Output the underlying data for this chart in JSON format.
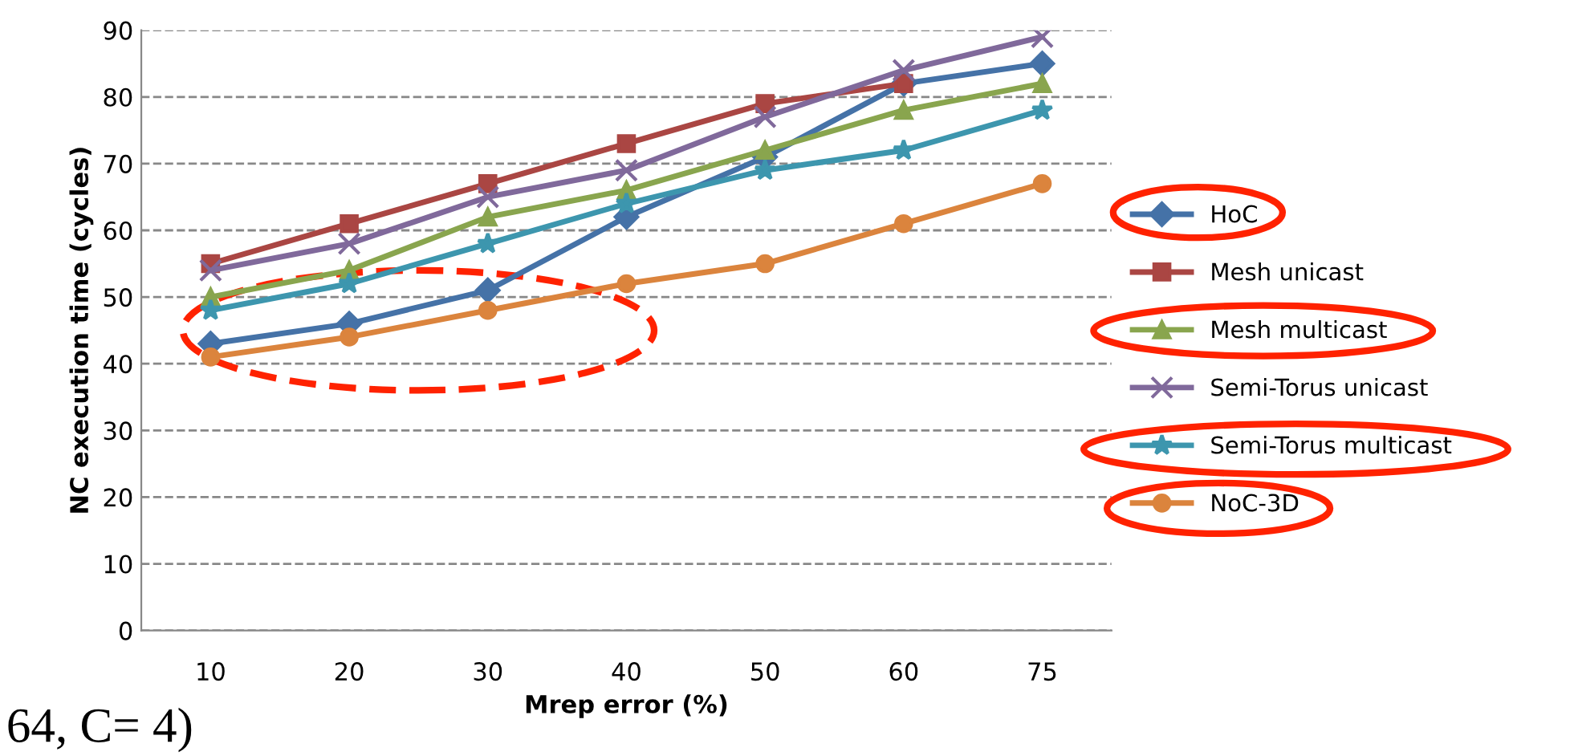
{
  "chart_data": {
    "type": "line",
    "xlabel": "Mrep error (%)",
    "ylabel": "NC execution time (cycles)",
    "categories": [
      "10",
      "20",
      "30",
      "40",
      "50",
      "60",
      "75"
    ],
    "ylim": [
      0,
      90
    ],
    "yticks": [
      0,
      10,
      20,
      30,
      40,
      50,
      60,
      70,
      80,
      90
    ],
    "grid": "y",
    "legend": "right",
    "line_style": "solid",
    "series": [
      {
        "name": "HoC",
        "color": "#4572a7",
        "marker": "diamond",
        "values": [
          43,
          46,
          51,
          62,
          71,
          82,
          85
        ]
      },
      {
        "name": "Mesh unicast",
        "color": "#aa4643",
        "marker": "square",
        "values": [
          55,
          61,
          67,
          73,
          79,
          82,
          null
        ]
      },
      {
        "name": "Mesh multicast",
        "color": "#89a54e",
        "marker": "triangle",
        "values": [
          50,
          54,
          62,
          66,
          72,
          78,
          82
        ]
      },
      {
        "name": "Semi-Torus unicast",
        "color": "#80699b",
        "marker": "cross",
        "values": [
          54,
          58,
          65,
          69,
          77,
          84,
          89
        ]
      },
      {
        "name": "Semi-Torus multicast",
        "color": "#3d96ae",
        "marker": "star",
        "values": [
          48,
          52,
          58,
          64,
          69,
          72,
          78
        ]
      },
      {
        "name": "NoC-3D",
        "color": "#db843d",
        "marker": "circle",
        "values": [
          41,
          44,
          48,
          52,
          55,
          61,
          67
        ]
      }
    ],
    "annotations": [
      "64, C= 4)"
    ]
  }
}
